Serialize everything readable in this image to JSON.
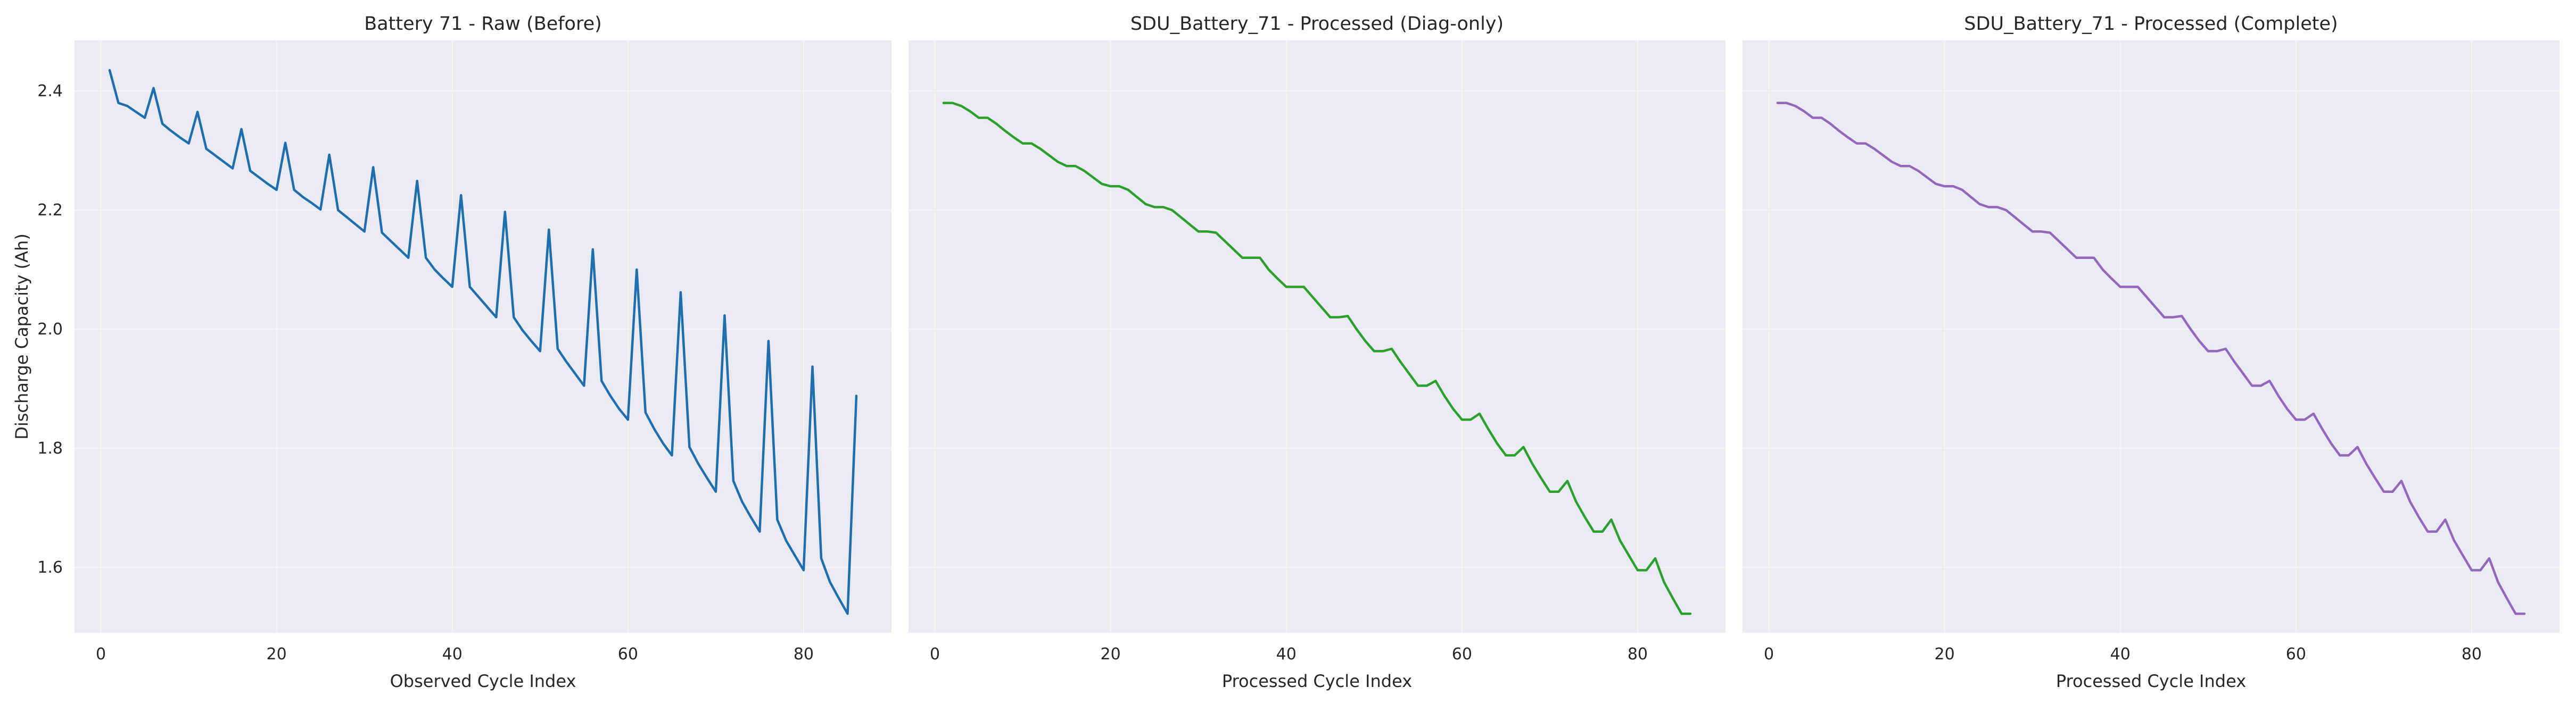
{
  "figure": {
    "ylabel": "Discharge Capacity (Ah)",
    "colors": {
      "background": "#ffffff",
      "axes_face": "#eaeaf2",
      "grid": "#f4f4f8",
      "text": "#262626"
    }
  },
  "chart_data": [
    {
      "type": "line",
      "title": "Battery 71 - Raw (Before)",
      "xlabel": "Observed Cycle Index",
      "ylabel": "Discharge Capacity (Ah)",
      "xlim": [
        -3,
        90
      ],
      "ylim": [
        1.49,
        2.485
      ],
      "xticks": [
        0,
        20,
        40,
        60,
        80
      ],
      "yticks": [
        1.6,
        1.8,
        2.0,
        2.2,
        2.4
      ],
      "grid": true,
      "series": [
        {
          "color": "#1f6fae",
          "x": [
            1,
            2,
            3,
            4,
            5,
            6,
            7,
            8,
            9,
            10,
            11,
            12,
            13,
            14,
            15,
            16,
            17,
            18,
            19,
            20,
            21,
            22,
            23,
            24,
            25,
            26,
            27,
            28,
            29,
            30,
            31,
            32,
            33,
            34,
            35,
            36,
            37,
            38,
            39,
            40,
            41,
            42,
            43,
            44,
            45,
            46,
            47,
            48,
            49,
            50,
            51,
            52,
            53,
            54,
            55,
            56,
            57,
            58,
            59,
            60,
            61,
            62,
            63,
            64,
            65,
            66,
            67,
            68,
            69,
            70,
            71,
            72,
            73,
            74,
            75,
            76,
            77,
            78,
            79,
            80,
            81,
            82,
            83,
            84,
            85,
            86
          ],
          "y": [
            2.435,
            2.38,
            2.375,
            2.365,
            2.355,
            2.405,
            2.345,
            2.333,
            2.322,
            2.312,
            2.365,
            2.303,
            2.292,
            2.281,
            2.27,
            2.336,
            2.266,
            2.255,
            2.244,
            2.234,
            2.313,
            2.234,
            2.222,
            2.212,
            2.201,
            2.293,
            2.2,
            2.188,
            2.176,
            2.164,
            2.272,
            2.162,
            2.148,
            2.134,
            2.12,
            2.249,
            2.12,
            2.1,
            2.085,
            2.071,
            2.225,
            2.071,
            2.054,
            2.037,
            2.02,
            2.197,
            2.02,
            1.998,
            1.98,
            1.963,
            2.167,
            1.967,
            1.945,
            1.925,
            1.905,
            2.134,
            1.913,
            1.888,
            1.866,
            1.848,
            2.1,
            1.86,
            1.832,
            1.808,
            1.788,
            2.062,
            1.802,
            1.774,
            1.75,
            1.727,
            2.023,
            1.745,
            1.71,
            1.684,
            1.66,
            1.98,
            1.68,
            1.645,
            1.62,
            1.595,
            1.937,
            1.615,
            1.575,
            1.548,
            1.522,
            1.888
          ]
        }
      ]
    },
    {
      "type": "line",
      "title": "SDU_Battery_71 - Processed (Diag-only)",
      "xlabel": "Processed Cycle Index",
      "ylabel": "",
      "xlim": [
        -3,
        90
      ],
      "ylim": [
        1.49,
        2.485
      ],
      "xticks": [
        0,
        20,
        40,
        60,
        80
      ],
      "yticks": [
        1.6,
        1.8,
        2.0,
        2.2,
        2.4
      ],
      "grid": true,
      "series": [
        {
          "color": "#2ca02c",
          "x": [
            1,
            2,
            3,
            4,
            5,
            6,
            7,
            8,
            9,
            10,
            11,
            12,
            13,
            14,
            15,
            16,
            17,
            18,
            19,
            20,
            21,
            22,
            23,
            24,
            25,
            26,
            27,
            28,
            29,
            30,
            31,
            32,
            33,
            34,
            35,
            36,
            37,
            38,
            39,
            40,
            41,
            42,
            43,
            44,
            45,
            46,
            47,
            48,
            49,
            50,
            51,
            52,
            53,
            54,
            55,
            56,
            57,
            58,
            59,
            60,
            61,
            62,
            63,
            64,
            65,
            66,
            67,
            68,
            69,
            70,
            71,
            72,
            73,
            74,
            75,
            76,
            77,
            78,
            79,
            80,
            81,
            82,
            83,
            84,
            85,
            86
          ],
          "y": [
            2.38,
            2.38,
            2.375,
            2.366,
            2.355,
            2.355,
            2.345,
            2.333,
            2.322,
            2.312,
            2.312,
            2.303,
            2.292,
            2.281,
            2.274,
            2.274,
            2.266,
            2.255,
            2.244,
            2.24,
            2.24,
            2.234,
            2.222,
            2.21,
            2.205,
            2.205,
            2.2,
            2.188,
            2.176,
            2.164,
            2.164,
            2.162,
            2.148,
            2.134,
            2.12,
            2.12,
            2.12,
            2.1,
            2.085,
            2.071,
            2.071,
            2.071,
            2.054,
            2.037,
            2.02,
            2.02,
            2.022,
            2.0,
            1.98,
            1.963,
            1.963,
            1.967,
            1.945,
            1.925,
            1.905,
            1.905,
            1.913,
            1.888,
            1.866,
            1.848,
            1.848,
            1.858,
            1.832,
            1.808,
            1.788,
            1.788,
            1.802,
            1.774,
            1.75,
            1.727,
            1.727,
            1.745,
            1.71,
            1.684,
            1.66,
            1.66,
            1.68,
            1.645,
            1.62,
            1.595,
            1.595,
            1.615,
            1.575,
            1.548,
            1.522,
            1.522
          ]
        }
      ]
    },
    {
      "type": "line",
      "title": "SDU_Battery_71 - Processed (Complete)",
      "xlabel": "Processed Cycle Index",
      "ylabel": "",
      "xlim": [
        -3,
        90
      ],
      "ylim": [
        1.49,
        2.485
      ],
      "xticks": [
        0,
        20,
        40,
        60,
        80
      ],
      "yticks": [
        1.6,
        1.8,
        2.0,
        2.2,
        2.4
      ],
      "grid": true,
      "series": [
        {
          "color": "#9467bd",
          "x": [
            1,
            2,
            3,
            4,
            5,
            6,
            7,
            8,
            9,
            10,
            11,
            12,
            13,
            14,
            15,
            16,
            17,
            18,
            19,
            20,
            21,
            22,
            23,
            24,
            25,
            26,
            27,
            28,
            29,
            30,
            31,
            32,
            33,
            34,
            35,
            36,
            37,
            38,
            39,
            40,
            41,
            42,
            43,
            44,
            45,
            46,
            47,
            48,
            49,
            50,
            51,
            52,
            53,
            54,
            55,
            56,
            57,
            58,
            59,
            60,
            61,
            62,
            63,
            64,
            65,
            66,
            67,
            68,
            69,
            70,
            71,
            72,
            73,
            74,
            75,
            76,
            77,
            78,
            79,
            80,
            81,
            82,
            83,
            84,
            85,
            86
          ],
          "y": [
            2.38,
            2.38,
            2.375,
            2.366,
            2.355,
            2.355,
            2.345,
            2.333,
            2.322,
            2.312,
            2.312,
            2.303,
            2.292,
            2.281,
            2.274,
            2.274,
            2.266,
            2.255,
            2.244,
            2.24,
            2.24,
            2.234,
            2.222,
            2.21,
            2.205,
            2.205,
            2.2,
            2.188,
            2.176,
            2.164,
            2.164,
            2.162,
            2.148,
            2.134,
            2.12,
            2.12,
            2.12,
            2.1,
            2.085,
            2.071,
            2.071,
            2.071,
            2.054,
            2.037,
            2.02,
            2.02,
            2.022,
            2.0,
            1.98,
            1.963,
            1.963,
            1.967,
            1.945,
            1.925,
            1.905,
            1.905,
            1.913,
            1.888,
            1.866,
            1.848,
            1.848,
            1.858,
            1.832,
            1.808,
            1.788,
            1.788,
            1.802,
            1.774,
            1.75,
            1.727,
            1.727,
            1.745,
            1.71,
            1.684,
            1.66,
            1.66,
            1.68,
            1.645,
            1.62,
            1.595,
            1.595,
            1.615,
            1.575,
            1.548,
            1.522,
            1.522
          ]
        }
      ]
    }
  ]
}
